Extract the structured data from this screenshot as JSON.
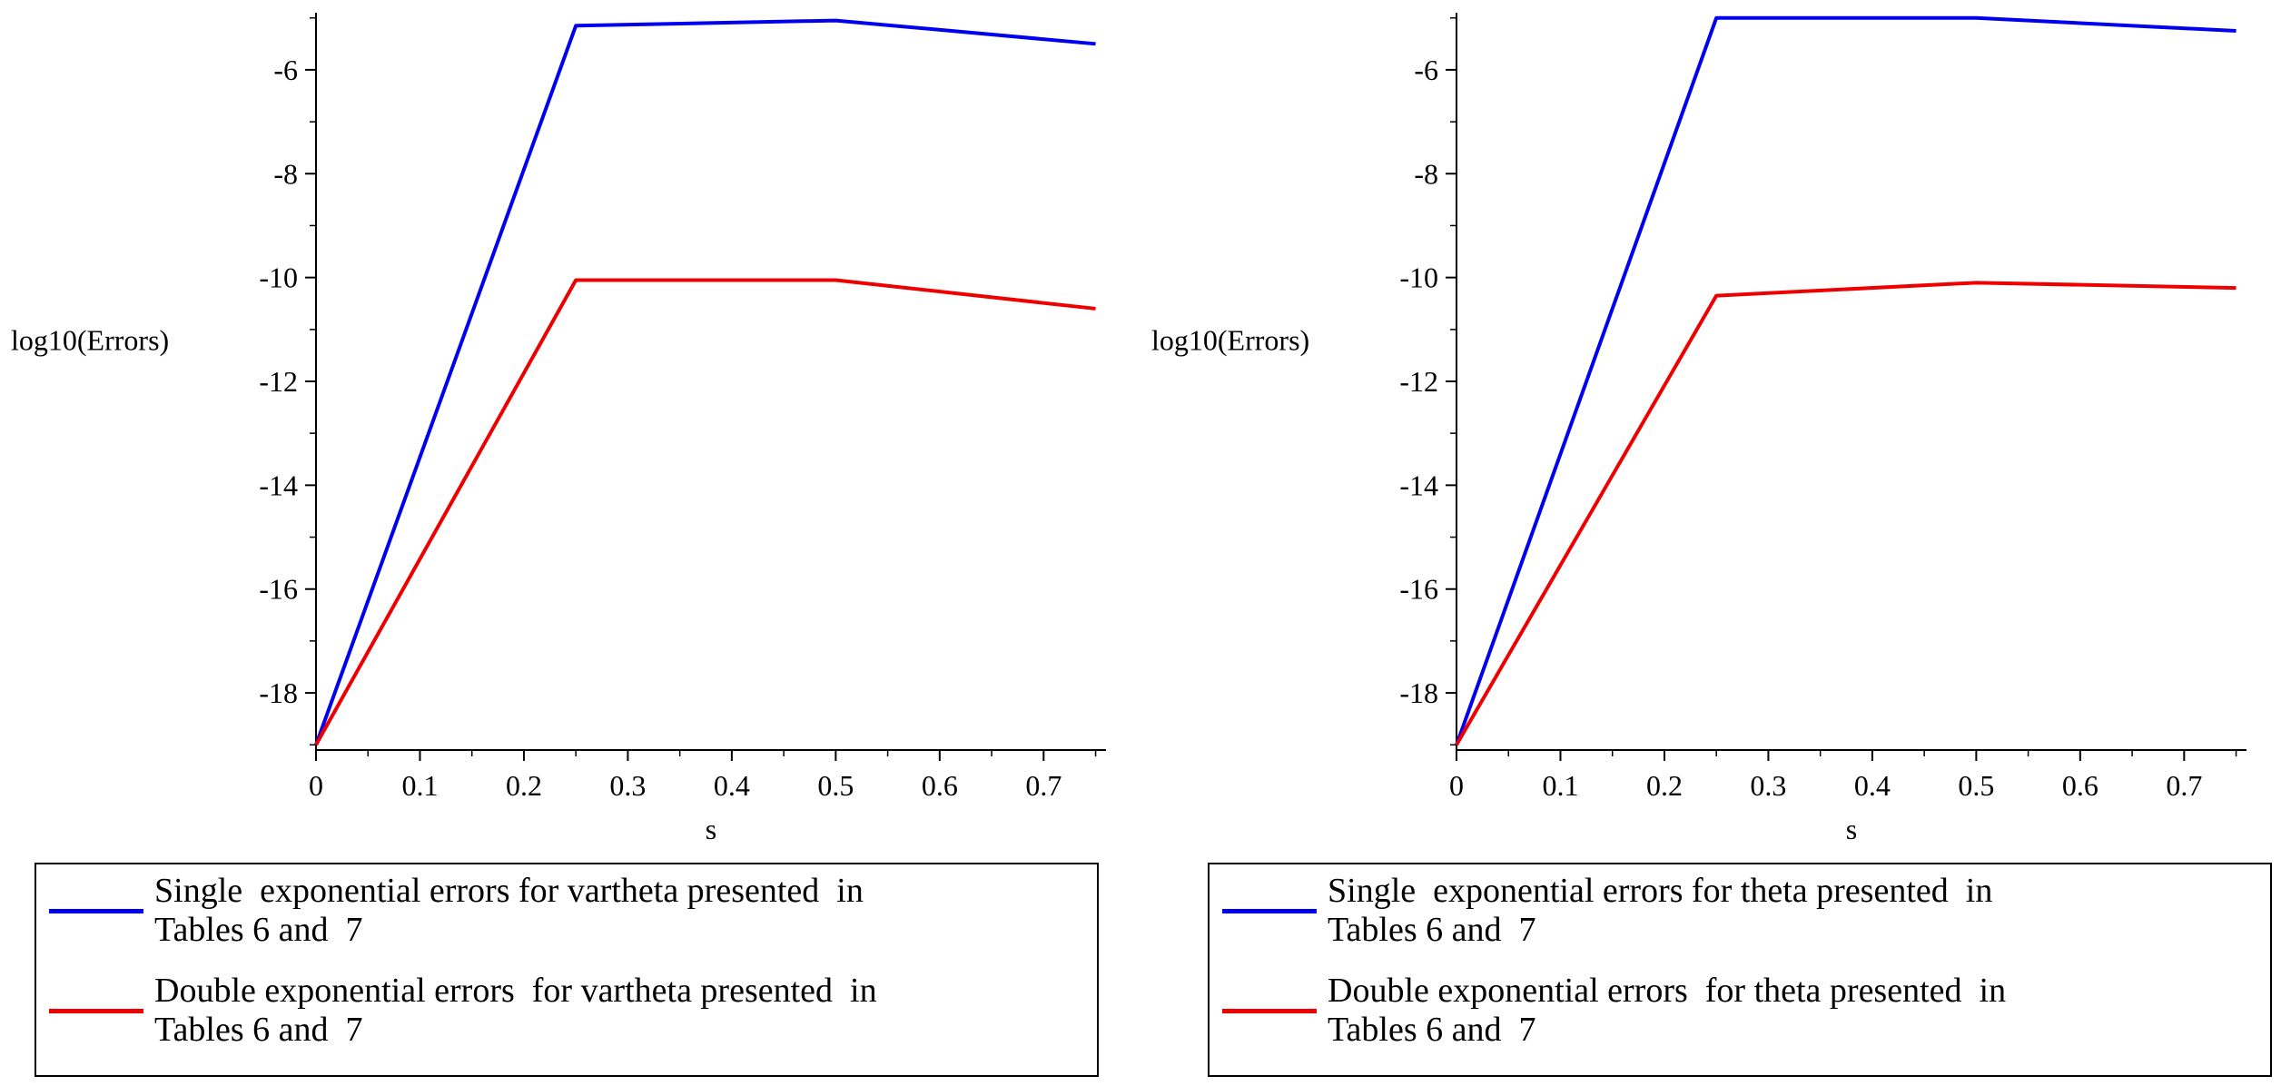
{
  "chart_data": [
    {
      "type": "line",
      "title": "",
      "xlabel": "s",
      "ylabel": "log10(Errors)",
      "xlim": [
        0,
        0.76
      ],
      "ylim": [
        -19.1,
        -4.9
      ],
      "xticks": [
        0,
        0.1,
        0.2,
        0.3,
        0.4,
        0.5,
        0.6,
        0.7
      ],
      "xtick_labels": [
        "0",
        "0.1",
        "0.2",
        "0.3",
        "0.4",
        "0.5",
        "0.6",
        "0.7"
      ],
      "yticks": [
        -6,
        -8,
        -10,
        -12,
        -14,
        -16,
        -18
      ],
      "ytick_labels": [
        "-6",
        "-8",
        "-10",
        "-12",
        "-14",
        "-16",
        "-18"
      ],
      "series": [
        {
          "name": "Single exponential errors for vartheta presented in Tables 6 and 7",
          "color": "#0000ee",
          "x": [
            0,
            0.25,
            0.5,
            0.75
          ],
          "y": [
            -19.0,
            -5.15,
            -5.05,
            -5.5
          ]
        },
        {
          "name": "Double exponential errors for vartheta presented in Tables 6 and 7",
          "color": "#ee0000",
          "x": [
            0,
            0.25,
            0.5,
            0.75
          ],
          "y": [
            -19.0,
            -10.05,
            -10.05,
            -10.6
          ]
        }
      ],
      "legend": {
        "position": "bottom",
        "entries": [
          "Single  exponential errors for vartheta presented  in\nTables 6 and  7",
          "Double exponential errors  for vartheta presented  in\nTables 6 and  7"
        ]
      }
    },
    {
      "type": "line",
      "title": "",
      "xlabel": "s",
      "ylabel": "log10(Errors)",
      "xlim": [
        0,
        0.76
      ],
      "ylim": [
        -19.1,
        -4.9
      ],
      "xticks": [
        0,
        0.1,
        0.2,
        0.3,
        0.4,
        0.5,
        0.6,
        0.7
      ],
      "xtick_labels": [
        "0",
        "0.1",
        "0.2",
        "0.3",
        "0.4",
        "0.5",
        "0.6",
        "0.7"
      ],
      "yticks": [
        -6,
        -8,
        -10,
        -12,
        -14,
        -16,
        -18
      ],
      "ytick_labels": [
        "-6",
        "-8",
        "-10",
        "-12",
        "-14",
        "-16",
        "-18"
      ],
      "series": [
        {
          "name": "Single exponential errors for theta presented in Tables 6 and 7",
          "color": "#0000ee",
          "x": [
            0,
            0.25,
            0.5,
            0.75
          ],
          "y": [
            -19.0,
            -5.0,
            -5.0,
            -5.25
          ]
        },
        {
          "name": "Double exponential errors for theta presented in Tables 6 and 7",
          "color": "#ee0000",
          "x": [
            0,
            0.25,
            0.5,
            0.75
          ],
          "y": [
            -19.0,
            -10.35,
            -10.1,
            -10.2
          ]
        }
      ],
      "legend": {
        "position": "bottom",
        "entries": [
          "Single  exponential errors for theta presented  in\nTables 6 and  7",
          "Double exponential errors  for theta presented  in\nTables 6 and  7"
        ]
      }
    }
  ]
}
